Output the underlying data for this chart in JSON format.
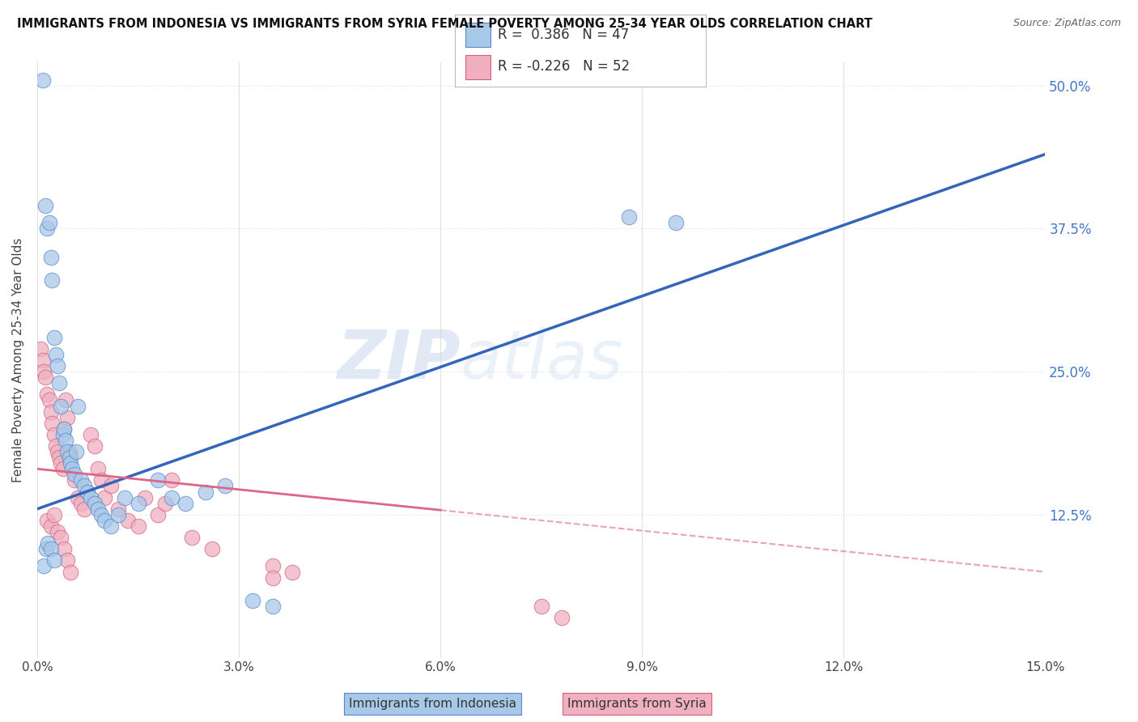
{
  "title": "IMMIGRANTS FROM INDONESIA VS IMMIGRANTS FROM SYRIA FEMALE POVERTY AMONG 25-34 YEAR OLDS CORRELATION CHART",
  "source": "Source: ZipAtlas.com",
  "ylabel": "Female Poverty Among 25-34 Year Olds",
  "xlabel_indonesia": "Immigrants from Indonesia",
  "xlabel_syria": "Immigrants from Syria",
  "xlim": [
    0.0,
    15.0
  ],
  "ylim": [
    0.0,
    52.0
  ],
  "ytick_vals": [
    0.0,
    12.5,
    25.0,
    37.5,
    50.0
  ],
  "xtick_vals": [
    0.0,
    3.0,
    6.0,
    9.0,
    12.0,
    15.0
  ],
  "indonesia_color": "#a8c8e8",
  "syria_color": "#f0b0c0",
  "indonesia_edge_color": "#5588cc",
  "syria_edge_color": "#d06080",
  "indonesia_line_color": "#3366bb",
  "syria_line_color": "#dd6688",
  "R_indonesia": 0.386,
  "N_indonesia": 47,
  "R_syria": -0.226,
  "N_syria": 52,
  "watermark_ZIP": "ZIP",
  "watermark_atlas": "atlas",
  "background_color": "#ffffff",
  "grid_color": "#e0e0e0",
  "indo_line_x0": 0.0,
  "indo_line_y0": 13.0,
  "indo_line_x1": 15.0,
  "indo_line_y1": 44.0,
  "syria_line_x0": 0.0,
  "syria_line_y0": 16.5,
  "syria_line_x1": 15.0,
  "syria_line_y1": 7.5,
  "syria_solid_end_x": 6.0,
  "indonesia_scatter_x": [
    0.08,
    0.12,
    0.15,
    0.18,
    0.2,
    0.22,
    0.25,
    0.28,
    0.3,
    0.32,
    0.35,
    0.38,
    0.4,
    0.42,
    0.45,
    0.48,
    0.5,
    0.52,
    0.55,
    0.58,
    0.6,
    0.65,
    0.7,
    0.75,
    0.8,
    0.85,
    0.9,
    0.95,
    1.0,
    1.1,
    1.2,
    1.3,
    1.5,
    1.8,
    2.0,
    2.2,
    2.5,
    2.8,
    3.2,
    3.5,
    8.8,
    9.5,
    0.1,
    0.13,
    0.16,
    0.2,
    0.25
  ],
  "indonesia_scatter_y": [
    50.5,
    39.5,
    37.5,
    38.0,
    35.0,
    33.0,
    28.0,
    26.5,
    25.5,
    24.0,
    22.0,
    19.5,
    20.0,
    19.0,
    18.0,
    17.5,
    17.0,
    16.5,
    16.0,
    18.0,
    22.0,
    15.5,
    15.0,
    14.5,
    14.0,
    13.5,
    13.0,
    12.5,
    12.0,
    11.5,
    12.5,
    14.0,
    13.5,
    15.5,
    14.0,
    13.5,
    14.5,
    15.0,
    5.0,
    4.5,
    38.5,
    38.0,
    8.0,
    9.5,
    10.0,
    9.5,
    8.5
  ],
  "syria_scatter_x": [
    0.05,
    0.08,
    0.1,
    0.12,
    0.15,
    0.18,
    0.2,
    0.22,
    0.25,
    0.28,
    0.3,
    0.32,
    0.35,
    0.38,
    0.4,
    0.42,
    0.45,
    0.48,
    0.5,
    0.55,
    0.6,
    0.65,
    0.7,
    0.75,
    0.8,
    0.85,
    0.9,
    0.95,
    1.0,
    1.1,
    1.2,
    1.35,
    1.5,
    1.8,
    2.0,
    2.3,
    2.6,
    0.15,
    0.2,
    0.25,
    0.3,
    0.35,
    0.4,
    0.45,
    0.5,
    1.6,
    1.9,
    7.5,
    7.8,
    3.5,
    3.8,
    3.5
  ],
  "syria_scatter_y": [
    27.0,
    26.0,
    25.0,
    24.5,
    23.0,
    22.5,
    21.5,
    20.5,
    19.5,
    18.5,
    18.0,
    17.5,
    17.0,
    16.5,
    20.0,
    22.5,
    21.0,
    18.0,
    17.5,
    15.5,
    14.0,
    13.5,
    13.0,
    14.5,
    19.5,
    18.5,
    16.5,
    15.5,
    14.0,
    15.0,
    13.0,
    12.0,
    11.5,
    12.5,
    15.5,
    10.5,
    9.5,
    12.0,
    11.5,
    12.5,
    11.0,
    10.5,
    9.5,
    8.5,
    7.5,
    14.0,
    13.5,
    4.5,
    3.5,
    8.0,
    7.5,
    7.0
  ]
}
